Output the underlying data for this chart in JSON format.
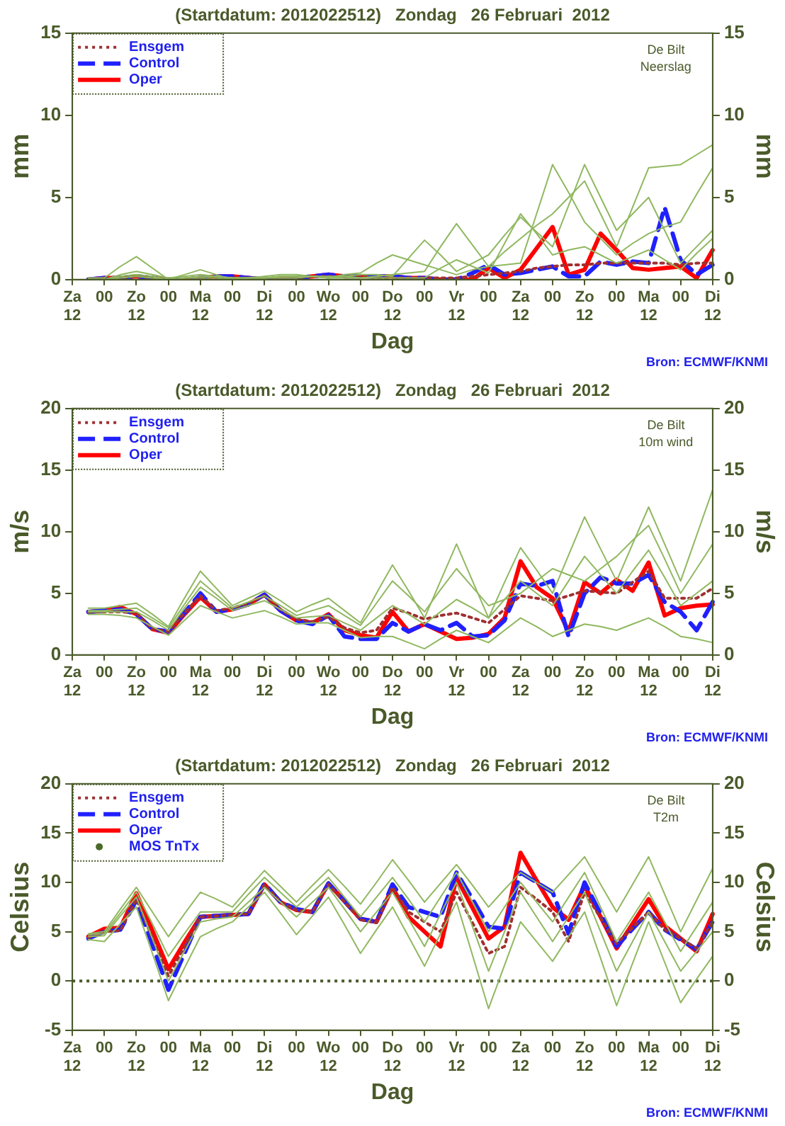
{
  "chart_data": [
    {
      "type": "line",
      "title": "(Startdatum: 2012022512)   Zondag   26 Februari  2012",
      "xlabel": "Dag",
      "ylabel": "mm",
      "y2label": "mm",
      "annotations": [
        "De Bilt",
        "Neerslag",
        "Bron: ECMWF/KNMI"
      ],
      "categories": [
        "Za\n12",
        null,
        "00",
        null,
        "Zo\n12",
        null,
        "00",
        null,
        "Ma\n12",
        null,
        "00",
        null,
        "Di\n12",
        null,
        "00",
        null,
        "Wo\n12",
        null,
        "00",
        null,
        "Do\n12",
        null,
        "00",
        null,
        "Vr\n12",
        null,
        "00",
        null,
        "Za\n12",
        null,
        "00",
        null,
        "Zo\n12",
        null,
        "00",
        null,
        "Ma\n12",
        null,
        "00",
        null,
        "Di\n12"
      ],
      "ylim": [
        0,
        15
      ],
      "yticks": [
        0,
        5,
        10,
        15
      ],
      "y2lim": [
        0,
        15
      ],
      "y2ticks": [
        0,
        5,
        10,
        15
      ],
      "legend": "top left",
      "marker": "none",
      "series": [
        {
          "color": "#90b860",
          "line_style": "solid",
          "values": [
            null,
            0,
            0,
            0.3,
            0.5,
            0.3,
            0.1,
            0.2,
            0.3,
            0.2,
            0.1,
            0.1,
            0.1,
            0.2,
            0.2,
            0.2,
            0.1,
            0.2,
            0.3,
            0.3,
            0.2,
            1.3,
            2.4,
            1.5,
            0.5,
            1.0,
            1.5,
            2.7,
            3.8,
            2.9,
            2,
            4.5,
            7,
            5,
            3,
            4,
            5,
            3,
            1,
            2,
            3
          ]
        },
        {
          "color": "#90b860",
          "line_style": "solid",
          "values": [
            null,
            0.1,
            0.1,
            0.8,
            1.4,
            0.7,
            0,
            0.3,
            0.6,
            0.3,
            0,
            0.1,
            0.2,
            0.3,
            0.3,
            0.2,
            0.1,
            0.1,
            0.1,
            0.2,
            0.3,
            0.4,
            0.5,
            2.0,
            3.4,
            2.1,
            0.8,
            1.7,
            2.5,
            3.3,
            4,
            5,
            6,
            4,
            2,
            4.4,
            6.8,
            6.9,
            7,
            7.6,
            8.2
          ]
        },
        {
          "color": "#90b860",
          "line_style": "solid",
          "values": [
            null,
            0,
            0,
            0.2,
            0.3,
            0.2,
            0,
            0.1,
            0.2,
            0.2,
            0.1,
            0.1,
            0.1,
            0.1,
            0.1,
            0.2,
            0.2,
            0.2,
            0.1,
            0.1,
            0.1,
            0.1,
            0.1,
            0.7,
            1.2,
            0.8,
            0.4,
            2.2,
            4.0,
            2.8,
            1.5,
            1.8,
            2,
            1.5,
            1.0,
            1.4,
            1.8,
            1.2,
            0.6,
            1.6,
            2.5
          ]
        },
        {
          "color": "#90b860",
          "line_style": "solid",
          "values": [
            null,
            0,
            0,
            0.1,
            0.2,
            0.1,
            0,
            0.1,
            0.1,
            0.1,
            0,
            0.1,
            0.1,
            0.2,
            0.2,
            0.2,
            0.1,
            0.3,
            0.4,
            1.0,
            1.5,
            1.2,
            0.9,
            0.6,
            0.3,
            0.6,
            0.8,
            0.9,
            1.0,
            4.0,
            7,
            5.3,
            3.5,
            2.5,
            1.5,
            2.2,
            2.8,
            3.2,
            3.5,
            5.2,
            6.8
          ]
        },
        {
          "name": "Ensgem",
          "color": "#a03030",
          "line_style": "dotted",
          "values": [
            null,
            0,
            0.1,
            0.1,
            0.2,
            0.1,
            0,
            0,
            0.1,
            0.1,
            0.1,
            0.1,
            0.1,
            0.1,
            0.1,
            0.2,
            0.2,
            0.2,
            0.2,
            0.1,
            0.1,
            0.1,
            0.1,
            0.1,
            0.1,
            0.2,
            0.3,
            0.4,
            0.5,
            0.7,
            0.8,
            0.9,
            0.9,
            1.0,
            1.0,
            1.0,
            1.0,
            1.0,
            0.9,
            1.0,
            1.0
          ]
        },
        {
          "name": "Control",
          "color": "#2020ff",
          "line_style": "dashed",
          "values": [
            null,
            0,
            0.1,
            0.1,
            0.2,
            0.1,
            0,
            0,
            0.1,
            0.2,
            0.2,
            0.1,
            0,
            0,
            0.1,
            0.2,
            0.3,
            0.2,
            0.2,
            0.2,
            0.2,
            0.1,
            0.1,
            0,
            0,
            0.4,
            0.9,
            0.3,
            0.4,
            0.6,
            0.8,
            0.2,
            0.2,
            1.1,
            0.9,
            1.1,
            1.0,
            4.4,
            1.2,
            0.3,
            0.9
          ]
        },
        {
          "name": "Oper",
          "color": "#ff0000",
          "line_style": "solid",
          "values": [
            null,
            0,
            0.1,
            0.1,
            0.2,
            0.1,
            0,
            0,
            0.1,
            0.2,
            0.2,
            0.1,
            0,
            0,
            0.1,
            0.2,
            0.3,
            0.2,
            0.2,
            0.2,
            0.2,
            0.1,
            0.1,
            0,
            0,
            0,
            0.7,
            0.1,
            0.6,
            1.9,
            3.2,
            0.3,
            0.6,
            2.8,
            1.8,
            0.7,
            0.6,
            0.7,
            0.8,
            0.1,
            1.8
          ]
        }
      ]
    },
    {
      "type": "line",
      "title": "(Startdatum: 2012022512)   Zondag   26 Februari  2012",
      "xlabel": "Dag",
      "ylabel": "m/s",
      "y2label": "m/s",
      "annotations": [
        "De Bilt",
        "10m wind",
        "Bron: ECMWF/KNMI"
      ],
      "categories": [
        "Za\n12",
        null,
        "00",
        null,
        "Zo\n12",
        null,
        "00",
        null,
        "Ma\n12",
        null,
        "00",
        null,
        "Di\n12",
        null,
        "00",
        null,
        "Wo\n12",
        null,
        "00",
        null,
        "Do\n12",
        null,
        "00",
        null,
        "Vr\n12",
        null,
        "00",
        null,
        "Za\n12",
        null,
        "00",
        null,
        "Zo\n12",
        null,
        "00",
        null,
        "Ma\n12",
        null,
        "00",
        null,
        "Di\n12"
      ],
      "ylim": [
        0,
        20
      ],
      "yticks": [
        0,
        5,
        10,
        15,
        20
      ],
      "y2lim": [
        0,
        20
      ],
      "y2ticks": [
        0,
        5,
        10,
        15,
        20
      ],
      "legend": "top left",
      "marker": "none",
      "series": [
        {
          "color": "#90b860",
          "line_style": "solid",
          "values": [
            null,
            3.8,
            3.8,
            4.0,
            4.2,
            3.3,
            2.3,
            4.6,
            6.8,
            5.4,
            4.0,
            4.6,
            5.2,
            4.4,
            3.5,
            4.1,
            4.6,
            3.6,
            2.6,
            5.0,
            7.3,
            5.2,
            3,
            6,
            9.0,
            6,
            3,
            5.9,
            8.7,
            6.9,
            5,
            8.1,
            11.2,
            8.6,
            6,
            9,
            12,
            9,
            6,
            9.7,
            13.4
          ]
        },
        {
          "color": "#90b860",
          "line_style": "solid",
          "values": [
            null,
            3.3,
            3.3,
            3.2,
            3.0,
            2.3,
            1.6,
            2.8,
            4.0,
            3.5,
            3.0,
            3.3,
            3.6,
            3.1,
            2.5,
            2.6,
            2.6,
            2.0,
            1.4,
            1.5,
            1.5,
            1.0,
            0.5,
            1.3,
            2.0,
            1.5,
            1.0,
            2.0,
            3.0,
            2.3,
            1.5,
            2.0,
            2.5,
            2.3,
            2.0,
            2.5,
            3.0,
            2.3,
            1.5,
            1.3,
            1.0
          ]
        },
        {
          "color": "#90b860",
          "line_style": "solid",
          "values": [
            null,
            3.5,
            3.5,
            3.5,
            3.5,
            2.8,
            2.0,
            3.8,
            5.5,
            4.6,
            3.6,
            4.0,
            4.4,
            3.7,
            3.0,
            3.1,
            3.2,
            2.6,
            2.0,
            3.0,
            4.0,
            3.3,
            2.5,
            3.5,
            4.5,
            3.8,
            3.0,
            4.5,
            6.0,
            5.0,
            4.0,
            6.0,
            8.0,
            6.5,
            5.0,
            6.8,
            8.5,
            6.3,
            4.0,
            5.0,
            6.0
          ]
        },
        {
          "color": "#90b860",
          "line_style": "solid",
          "values": [
            null,
            3.6,
            3.6,
            3.7,
            3.8,
            3.0,
            2.2,
            4.1,
            6.0,
            4.9,
            3.8,
            4.3,
            4.8,
            4.0,
            3.2,
            3.6,
            4.0,
            3.2,
            2.4,
            4.2,
            6.0,
            4.8,
            3.5,
            5.3,
            7.0,
            5.5,
            4.0,
            4.5,
            5.0,
            6.0,
            7.0,
            6.5,
            6.0,
            7.0,
            8.0,
            9.3,
            10.5,
            7.8,
            5.0,
            7.0,
            9.0
          ]
        },
        {
          "name": "Ensgem",
          "color": "#a03030",
          "line_style": "dotted",
          "values": [
            null,
            3.5,
            3.5,
            3.5,
            3.4,
            2.1,
            1.9,
            3.4,
            4.8,
            3.6,
            3.8,
            4.2,
            4.8,
            3.7,
            2.9,
            2.7,
            3.1,
            2.2,
            1.8,
            2.0,
            3.8,
            3.4,
            2.9,
            3.2,
            3.4,
            3.0,
            2.6,
            3.7,
            4.8,
            4.6,
            4.4,
            4.8,
            5.2,
            5.1,
            5.0,
            5.9,
            6.8,
            4.6,
            4.6,
            4.6,
            5.4
          ]
        },
        {
          "name": "Control",
          "color": "#2020ff",
          "line_style": "dashed",
          "values": [
            null,
            3.5,
            3.6,
            3.7,
            3.3,
            2.1,
            1.9,
            3.4,
            5.0,
            3.5,
            3.7,
            4.1,
            4.9,
            3.6,
            2.8,
            2.5,
            3.2,
            1.5,
            1.3,
            1.3,
            2.6,
            1.9,
            2.5,
            2.0,
            2.6,
            1.5,
            1.6,
            2.8,
            5.8,
            5.6,
            6.0,
            1.5,
            5.0,
            6.3,
            5.8,
            5.8,
            6.5,
            4.3,
            3.5,
            2.0,
            4.3
          ]
        },
        {
          "name": "Oper",
          "color": "#ff0000",
          "line_style": "solid",
          "values": [
            null,
            3.5,
            3.6,
            3.9,
            3.3,
            2.1,
            1.8,
            3.3,
            4.7,
            3.5,
            3.7,
            4.1,
            4.9,
            3.6,
            2.8,
            2.6,
            3.3,
            2.0,
            1.6,
            1.4,
            3.5,
            1.9,
            2.5,
            1.9,
            1.3,
            1.4,
            1.7,
            3.0,
            7.6,
            5.5,
            4.6,
            1.9,
            5.9,
            5.0,
            6.1,
            5.2,
            7.5,
            3.2,
            3.8,
            4.0,
            4.1
          ]
        }
      ]
    },
    {
      "type": "line",
      "title": "(Startdatum: 2012022512)   Zondag   26 Februari  2012",
      "xlabel": "Dag",
      "ylabel": "Celsius",
      "y2label": "Celsius",
      "annotations": [
        "De Bilt",
        "T2m",
        "Bron: ECMWF/KNMI"
      ],
      "categories": [
        "Za\n12",
        null,
        "00",
        null,
        "Zo\n12",
        null,
        "00",
        null,
        "Ma\n12",
        null,
        "00",
        null,
        "Di\n12",
        null,
        "00",
        null,
        "Wo\n12",
        null,
        "00",
        null,
        "Do\n12",
        null,
        "00",
        null,
        "Vr\n12",
        null,
        "00",
        null,
        "Za\n12",
        null,
        "00",
        null,
        "Zo\n12",
        null,
        "00",
        null,
        "Ma\n12",
        null,
        "00",
        null,
        "Di\n12"
      ],
      "ylim": [
        -5,
        20
      ],
      "yticks": [
        -5,
        0,
        5,
        10,
        15,
        20
      ],
      "y2lim": [
        -5,
        20
      ],
      "y2ticks": [
        -5,
        0,
        5,
        10,
        15,
        20
      ],
      "legend": "top left",
      "marker": "none",
      "ref_lines": [
        {
          "axis": "y",
          "value": 0,
          "color": "#4a5a2a",
          "line_style": "dotted"
        }
      ],
      "series": [
        {
          "color": "#90b860",
          "line_style": "solid",
          "values": [
            null,
            4.8,
            5,
            7.3,
            9.5,
            7,
            4.5,
            6.8,
            9,
            8.3,
            7.5,
            9.4,
            11.2,
            9.6,
            8,
            9.7,
            11.3,
            9.6,
            7.8,
            10,
            12.3,
            10.2,
            8,
            9.9,
            11.8,
            9.7,
            7.5,
            9.3,
            11,
            10,
            9,
            10.8,
            12.6,
            9.8,
            7,
            9.8,
            12.6,
            8.8,
            5,
            8.2,
            11.4
          ]
        },
        {
          "color": "#90b860",
          "line_style": "solid",
          "values": [
            null,
            4.2,
            4,
            5.8,
            7.5,
            2.8,
            -2,
            1.3,
            4.5,
            5.3,
            6,
            7.5,
            9,
            6.9,
            4.7,
            6.6,
            8.5,
            5.7,
            2.8,
            5.2,
            7.5,
            4.5,
            1.5,
            4.8,
            8,
            2.6,
            -2.8,
            1.6,
            6,
            4,
            2,
            4.5,
            7,
            2.3,
            -2.5,
            1.8,
            6,
            1.9,
            -2.2,
            0.2,
            2.5
          ]
        },
        {
          "color": "#90b860",
          "line_style": "solid",
          "values": [
            null,
            4.5,
            4.6,
            6.6,
            8.5,
            4.3,
            0,
            3,
            6,
            6.3,
            6.5,
            8,
            9.5,
            8,
            6.5,
            8,
            9.5,
            7.3,
            5,
            7,
            9,
            6.3,
            3.5,
            6.8,
            10,
            5.5,
            1,
            5,
            9,
            6.5,
            4,
            6.5,
            9,
            5,
            1,
            4,
            7,
            4,
            1,
            3,
            5
          ]
        },
        {
          "color": "#90b860",
          "line_style": "solid",
          "values": [
            null,
            4.7,
            4.8,
            6.9,
            9,
            5.8,
            2.5,
            4.8,
            7,
            7,
            7,
            8.8,
            10.5,
            9,
            7.5,
            9,
            10.5,
            8.5,
            6.5,
            8.5,
            10.5,
            8.3,
            6,
            8.5,
            11,
            8,
            5,
            7.5,
            10,
            8,
            6,
            8.5,
            11,
            7.5,
            4,
            6.5,
            9,
            6,
            3,
            5.5,
            8
          ]
        },
        {
          "name": "Ensgem",
          "color": "#a03030",
          "line_style": "dotted",
          "values": [
            null,
            4.4,
            5.0,
            5.1,
            8.3,
            4.4,
            0.5,
            3.5,
            6.5,
            6.6,
            6.7,
            6.8,
            9.8,
            8.0,
            7.2,
            7.0,
            9.8,
            8.0,
            6.2,
            5.9,
            9.5,
            7.0,
            6.0,
            5.0,
            9.0,
            5.9,
            2.8,
            3.5,
            9.5,
            8.3,
            7.0,
            4.0,
            9.0,
            6.4,
            3.8,
            5.4,
            7.0,
            5.2,
            4.3,
            3.3,
            6.0
          ]
        },
        {
          "name": "Control",
          "color": "#2020ff",
          "line_style": "dashed",
          "values": [
            null,
            4.3,
            5.0,
            5.2,
            8.2,
            3.7,
            -0.9,
            2.8,
            6.5,
            6.6,
            6.7,
            6.8,
            9.9,
            8.0,
            7.3,
            7.0,
            9.9,
            8.1,
            6.3,
            6.0,
            9.8,
            7.5,
            7.0,
            6.5,
            11,
            8.3,
            5.5,
            5.3,
            11,
            10,
            9,
            4.8,
            10,
            6.8,
            3.5,
            5.3,
            7,
            5.2,
            4.2,
            3.2,
            6
          ]
        },
        {
          "name": "Oper",
          "color": "#ff0000",
          "line_style": "solid",
          "values": [
            null,
            4.5,
            5.3,
            5.4,
            8.9,
            5.1,
            1.2,
            3.9,
            6.5,
            6.6,
            6.7,
            6.8,
            9.8,
            8.0,
            7.2,
            7.0,
            9.9,
            8.1,
            6.3,
            6.0,
            9.5,
            6.5,
            5.0,
            3.5,
            10.5,
            7.4,
            4.3,
            5.5,
            13,
            10.2,
            7.5,
            6.2,
            9.7,
            6.5,
            3.3,
            5.8,
            8.3,
            5.6,
            4.3,
            3.0,
            6.8
          ]
        },
        {
          "name": "MOS TnTx",
          "color": "#4a6a2a",
          "line_style": "none",
          "marker": "circle",
          "values": [
            null,
            null,
            null,
            null,
            null,
            null,
            null,
            null,
            null,
            null,
            null,
            null,
            null,
            null,
            null,
            null,
            null,
            null,
            null,
            null,
            null,
            null,
            null,
            null,
            null,
            null,
            null,
            null,
            null,
            null,
            null,
            null,
            null,
            null,
            null,
            null,
            null,
            null,
            null,
            null,
            null
          ]
        }
      ]
    }
  ]
}
